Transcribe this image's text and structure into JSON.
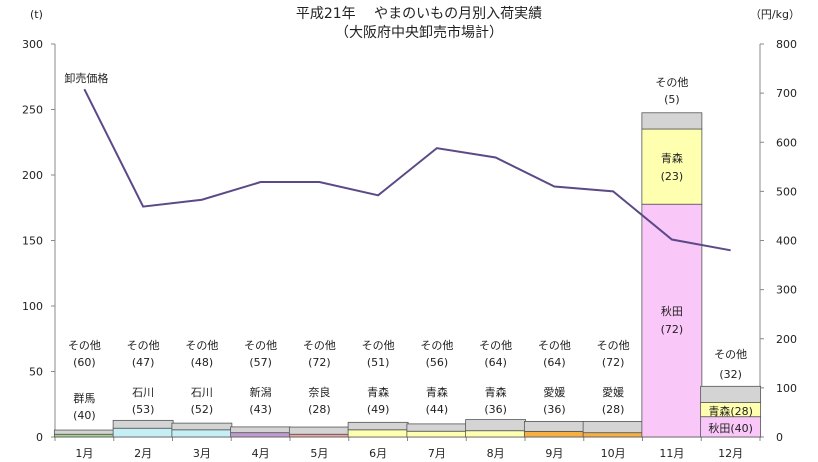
{
  "chart_data": {
    "type": "bar",
    "title": "平成21年　 やまのいもの月別入荷実績",
    "subtitle": "（大阪府中央卸売市場計）",
    "y_left_unit": "(t)",
    "y_right_unit": "（円/kg）",
    "y_left_ticks": [
      "0",
      "50",
      "100",
      "150",
      "200",
      "250",
      "300"
    ],
    "y_right_ticks": [
      "0",
      "100",
      "200",
      "300",
      "400",
      "500",
      "600",
      "700",
      "800"
    ],
    "ylim_left": [
      0,
      300
    ],
    "ylim_right": [
      0,
      800
    ],
    "categories": [
      "1月",
      "2月",
      "3月",
      "4月",
      "5月",
      "6月",
      "7月",
      "8月",
      "9月",
      "10月",
      "11月",
      "12月"
    ],
    "price_series": {
      "name": "卸売価格",
      "values": [
        708,
        469,
        483,
        519,
        519,
        492,
        588,
        569,
        510,
        500,
        402,
        380
      ]
    },
    "bars": [
      {
        "segments": [
          {
            "name": "群馬",
            "value": 2.1,
            "color": "#a8d08d",
            "pct": "40"
          },
          {
            "name": "その他",
            "value": 3.2,
            "color": "#d4d4d4",
            "pct": "60"
          }
        ]
      },
      {
        "segments": [
          {
            "name": "石川",
            "value": 6.7,
            "color": "#c6eff5",
            "pct": "53"
          },
          {
            "name": "その他",
            "value": 6.0,
            "color": "#d4d4d4",
            "pct": "47"
          }
        ]
      },
      {
        "segments": [
          {
            "name": "石川",
            "value": 5.5,
            "color": "#c6eff5",
            "pct": "52"
          },
          {
            "name": "その他",
            "value": 5.1,
            "color": "#d4d4d4",
            "pct": "48"
          }
        ]
      },
      {
        "segments": [
          {
            "name": "新潟",
            "value": 3.3,
            "color": "#c39bd3",
            "pct": "43"
          },
          {
            "name": "その他",
            "value": 4.4,
            "color": "#d4d4d4",
            "pct": "57"
          }
        ]
      },
      {
        "segments": [
          {
            "name": "奈良",
            "value": 2.1,
            "color": "#f0a3a3",
            "pct": "28"
          },
          {
            "name": "その他",
            "value": 5.5,
            "color": "#d4d4d4",
            "pct": "72"
          }
        ]
      },
      {
        "segments": [
          {
            "name": "青森",
            "value": 5.5,
            "color": "#ffffb0",
            "pct": "49"
          },
          {
            "name": "その他",
            "value": 5.7,
            "color": "#d4d4d4",
            "pct": "51"
          }
        ]
      },
      {
        "segments": [
          {
            "name": "青森",
            "value": 4.4,
            "color": "#ffffb0",
            "pct": "44"
          },
          {
            "name": "その他",
            "value": 5.6,
            "color": "#d4d4d4",
            "pct": "56"
          }
        ]
      },
      {
        "segments": [
          {
            "name": "青森",
            "value": 4.8,
            "color": "#ffffb0",
            "pct": "36"
          },
          {
            "name": "その他",
            "value": 8.5,
            "color": "#d4d4d4",
            "pct": "64"
          }
        ]
      },
      {
        "segments": [
          {
            "name": "愛媛",
            "value": 4.3,
            "color": "#f5b041",
            "pct": "36"
          },
          {
            "name": "その他",
            "value": 7.6,
            "color": "#d4d4d4",
            "pct": "64"
          }
        ]
      },
      {
        "segments": [
          {
            "name": "愛媛",
            "value": 3.3,
            "color": "#f5b041",
            "pct": "28"
          },
          {
            "name": "その他",
            "value": 8.6,
            "color": "#d4d4d4",
            "pct": "72"
          }
        ]
      },
      {
        "segments": [
          {
            "name": "秋田",
            "value": 177.7,
            "color": "#f9c8f9",
            "pct": "72"
          },
          {
            "name": "青森",
            "value": 57.4,
            "color": "#ffffb0",
            "pct": "23"
          },
          {
            "name": "その他",
            "value": 12.4,
            "color": "#d4d4d4",
            "pct": "5"
          }
        ]
      },
      {
        "segments": [
          {
            "name": "秋田",
            "value": 15.5,
            "color": "#f9c8f9",
            "pct": "40"
          },
          {
            "name": "青森",
            "value": 10.8,
            "color": "#ffffb0",
            "pct": "28"
          },
          {
            "name": "その他",
            "value": 12.4,
            "color": "#d4d4d4",
            "pct": "32"
          }
        ]
      }
    ]
  }
}
